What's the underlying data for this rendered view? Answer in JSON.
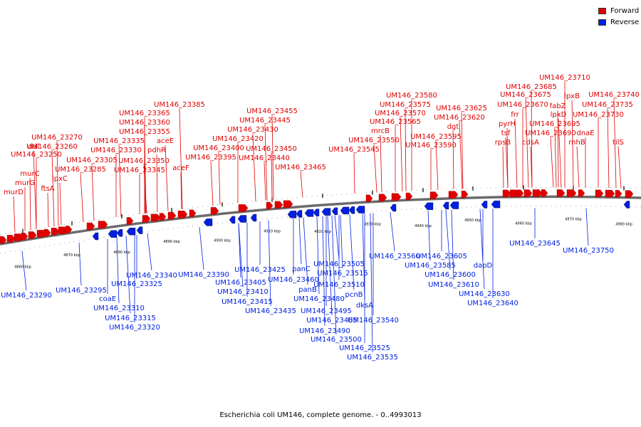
{
  "legend": {
    "forward_label": "Forward",
    "reverse_label": "Reverse",
    "forward_color": "#e00000",
    "reverse_color": "#0020e0"
  },
  "caption": "Escherichia coli UM146, complete genome. - 0..4993013",
  "ticks": [
    "4860 kbp",
    "4870 kbp",
    "4880 kbp",
    "4890 kbp",
    "4900 kbp",
    "4910 kbp",
    "4920 kbp",
    "4930 kbp",
    "4940 kbp",
    "4950 kbp",
    "4960 kbp",
    "4970 kbp",
    "4980 kbp"
  ],
  "forward_labels": [
    "UM146_23710",
    "UM146_23685",
    "lpxB",
    "UM146_23740",
    "UM146_23675",
    "UM146_23670",
    "fabZ",
    "UM146_23735",
    "frr",
    "lpxD",
    "UM146_23730",
    "pyrH",
    "UM146_23695",
    "tsf",
    "UM146_23690",
    "dnaE",
    "rpsB",
    "cdsA",
    "rnhB",
    "tilS",
    "UM146_23580",
    "UM146_23575",
    "UM146_23625",
    "UM146_23570",
    "UM146_23620",
    "UM146_23565",
    "dgt",
    "mrcB",
    "UM146_23595",
    "UM146_23550",
    "UM146_23590",
    "UM146_23545",
    "UM146_23455",
    "UM146_23445",
    "UM146_23430",
    "UM146_23420",
    "UM146_23450",
    "UM146_23440",
    "UM146_23465",
    "UM146_23385",
    "UM146_23365",
    "UM146_23360",
    "UM146_23355",
    "UM146_23335",
    "aceE",
    "UM146_23330",
    "pdhR",
    "UM146_23400",
    "UM146_23395",
    "UM146_23350",
    "UM146_23345",
    "aceF",
    "UM146_23270",
    "UM146_23260",
    "ddl",
    "UM146_23250",
    "murC",
    "lpxC",
    "UM146_23305",
    "UM146_23285",
    "murG",
    "ftsA",
    "murD"
  ],
  "reverse_labels": [
    "UM146_23645",
    "UM146_23750",
    "UM146_23560",
    "UM146_23605",
    "UM146_23585",
    "UM146_23600",
    "dapD",
    "UM146_23610",
    "UM146_23630",
    "UM146_23640",
    "panC",
    "UM146_23505",
    "UM146_23460",
    "UM146_23515",
    "panB",
    "UM146_23510",
    "UM146_23480",
    "pcnB",
    "UM146_23495",
    "dksA",
    "UM146_23485",
    "UM146_23540",
    "UM146_23490",
    "UM146_23500",
    "UM146_23525",
    "UM146_23535",
    "UM146_23390",
    "UM146_23425",
    "UM146_23405",
    "UM146_23410",
    "UM146_23415",
    "UM146_23435",
    "UM146_23340",
    "UM146_23325",
    "UM146_23295",
    "UM146_23290",
    "coaE",
    "UM146_23310",
    "UM146_23315",
    "UM146_23320"
  ]
}
